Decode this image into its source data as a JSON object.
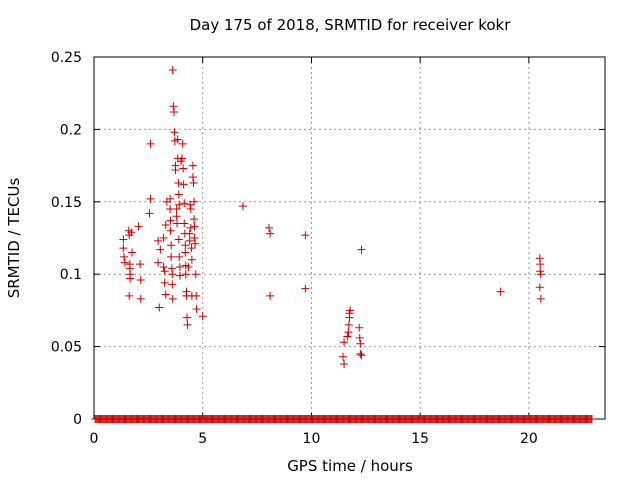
{
  "chart_data": {
    "type": "scatter",
    "title": "Day 175 of 2018, SRMTID for receiver kokr",
    "xlabel": "GPS time / hours",
    "ylabel": "SRMTID / TECUs",
    "xlim": [
      0,
      23.5
    ],
    "ylim": [
      0,
      0.25
    ],
    "xticks": [
      0,
      5,
      10,
      15,
      20
    ],
    "xtick_labels": [
      "0",
      "5",
      "10",
      "15",
      "20"
    ],
    "yticks": [
      0,
      0.05,
      0.1,
      0.15,
      0.2,
      0.25
    ],
    "ytick_labels": [
      "0",
      "0.05",
      "0.1",
      "0.15",
      "0.2",
      "0.25"
    ],
    "grid": true,
    "marker": "+",
    "color": "#cc0000",
    "baseline": {
      "y": 0,
      "x_start": 0.05,
      "x_end": 22.9,
      "step": 0.05
    },
    "series": [
      {
        "name": "SRMTID",
        "points": [
          [
            1.35,
            0.124
          ],
          [
            1.35,
            0.118
          ],
          [
            1.38,
            0.112
          ],
          [
            1.42,
            0.108
          ],
          [
            1.6,
            0.13
          ],
          [
            1.62,
            0.127
          ],
          [
            1.65,
            0.107
          ],
          [
            1.65,
            0.104
          ],
          [
            1.66,
            0.1
          ],
          [
            1.66,
            0.097
          ],
          [
            1.62,
            0.085
          ],
          [
            1.75,
            0.115
          ],
          [
            1.72,
            0.129
          ],
          [
            2.05,
            0.133
          ],
          [
            2.12,
            0.107
          ],
          [
            2.15,
            0.096
          ],
          [
            2.15,
            0.083
          ],
          [
            2.6,
            0.19
          ],
          [
            2.6,
            0.152
          ],
          [
            2.55,
            0.142
          ],
          [
            2.95,
            0.123
          ],
          [
            2.95,
            0.108
          ],
          [
            3.0,
            0.077
          ],
          [
            3.05,
            0.117
          ],
          [
            3.2,
            0.125
          ],
          [
            3.2,
            0.105
          ],
          [
            3.25,
            0.102
          ],
          [
            3.25,
            0.094
          ],
          [
            3.3,
            0.086
          ],
          [
            3.3,
            0.134
          ],
          [
            3.35,
            0.15
          ],
          [
            3.5,
            0.152
          ],
          [
            3.5,
            0.145
          ],
          [
            3.52,
            0.137
          ],
          [
            3.52,
            0.13
          ],
          [
            3.55,
            0.12
          ],
          [
            3.55,
            0.112
          ],
          [
            3.58,
            0.104
          ],
          [
            3.6,
            0.1
          ],
          [
            3.6,
            0.093
          ],
          [
            3.62,
            0.083
          ],
          [
            3.62,
            0.241
          ],
          [
            3.65,
            0.216
          ],
          [
            3.68,
            0.212
          ],
          [
            3.7,
            0.198
          ],
          [
            3.72,
            0.192
          ],
          [
            3.75,
            0.175
          ],
          [
            3.75,
            0.172
          ],
          [
            3.8,
            0.145
          ],
          [
            3.8,
            0.14
          ],
          [
            3.82,
            0.135
          ],
          [
            3.85,
            0.193
          ],
          [
            3.85,
            0.18
          ],
          [
            3.88,
            0.163
          ],
          [
            3.9,
            0.155
          ],
          [
            3.92,
            0.148
          ],
          [
            3.9,
            0.124
          ],
          [
            3.92,
            0.112
          ],
          [
            3.95,
            0.105
          ],
          [
            3.95,
            0.099
          ],
          [
            4.0,
            0.178
          ],
          [
            4.05,
            0.18
          ],
          [
            4.08,
            0.19
          ],
          [
            4.1,
            0.173
          ],
          [
            4.12,
            0.162
          ],
          [
            4.15,
            0.149
          ],
          [
            4.15,
            0.135
          ],
          [
            4.18,
            0.128
          ],
          [
            4.2,
            0.12
          ],
          [
            4.2,
            0.115
          ],
          [
            4.22,
            0.106
          ],
          [
            4.22,
            0.1
          ],
          [
            4.25,
            0.088
          ],
          [
            4.25,
            0.085
          ],
          [
            4.28,
            0.07
          ],
          [
            4.3,
            0.065
          ],
          [
            4.35,
            0.105
          ],
          [
            4.4,
            0.128
          ],
          [
            4.4,
            0.123
          ],
          [
            4.42,
            0.148
          ],
          [
            4.45,
            0.145
          ],
          [
            4.45,
            0.132
          ],
          [
            4.48,
            0.118
          ],
          [
            4.5,
            0.11
          ],
          [
            4.5,
            0.085
          ],
          [
            4.55,
            0.175
          ],
          [
            4.55,
            0.167
          ],
          [
            4.58,
            0.163
          ],
          [
            4.6,
            0.15
          ],
          [
            4.6,
            0.138
          ],
          [
            4.62,
            0.133
          ],
          [
            4.62,
            0.125
          ],
          [
            4.65,
            0.121
          ],
          [
            4.68,
            0.1
          ],
          [
            4.7,
            0.085
          ],
          [
            4.72,
            0.076
          ],
          [
            5.0,
            0.071
          ],
          [
            6.85,
            0.147
          ],
          [
            8.05,
            0.132
          ],
          [
            8.1,
            0.128
          ],
          [
            8.1,
            0.085
          ],
          [
            9.72,
            0.127
          ],
          [
            9.72,
            0.09
          ],
          [
            11.45,
            0.043
          ],
          [
            11.5,
            0.038
          ],
          [
            11.5,
            0.053
          ],
          [
            11.65,
            0.057
          ],
          [
            11.7,
            0.06
          ],
          [
            11.72,
            0.065
          ],
          [
            11.75,
            0.07
          ],
          [
            11.75,
            0.073
          ],
          [
            11.78,
            0.075
          ],
          [
            12.2,
            0.063
          ],
          [
            12.22,
            0.056
          ],
          [
            12.25,
            0.052
          ],
          [
            12.25,
            0.045
          ],
          [
            12.3,
            0.044
          ],
          [
            12.3,
            0.117
          ],
          [
            18.7,
            0.088
          ],
          [
            20.5,
            0.111
          ],
          [
            20.52,
            0.107
          ],
          [
            20.52,
            0.102
          ],
          [
            20.55,
            0.1
          ],
          [
            20.5,
            0.091
          ],
          [
            20.55,
            0.083
          ]
        ]
      }
    ]
  }
}
